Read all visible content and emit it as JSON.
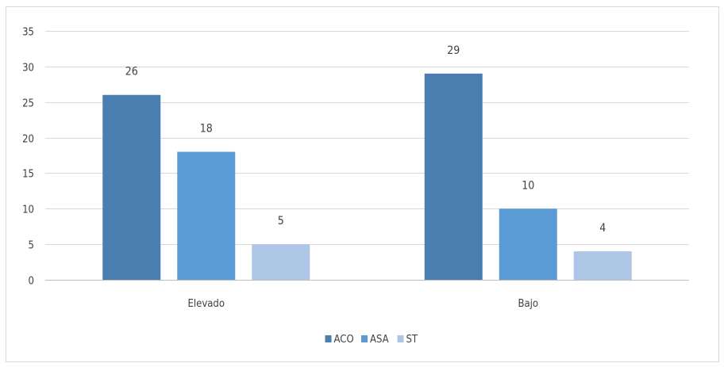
{
  "chart_data": {
    "type": "bar",
    "title": "",
    "xlabel": "",
    "ylabel": "",
    "categories": [
      "Elevado",
      "Bajo"
    ],
    "series": [
      {
        "name": "ACO",
        "values": [
          26,
          29
        ],
        "color": "#4a7eb0"
      },
      {
        "name": "ASA",
        "values": [
          18,
          10
        ],
        "color": "#5b9bd5"
      },
      {
        "name": "ST",
        "values": [
          5,
          4
        ],
        "color": "#adc6e6"
      }
    ],
    "ylim": [
      0,
      35
    ],
    "yticks": [
      0,
      5,
      10,
      15,
      20,
      25,
      30,
      35
    ],
    "grid": true,
    "legend": "bottom"
  }
}
